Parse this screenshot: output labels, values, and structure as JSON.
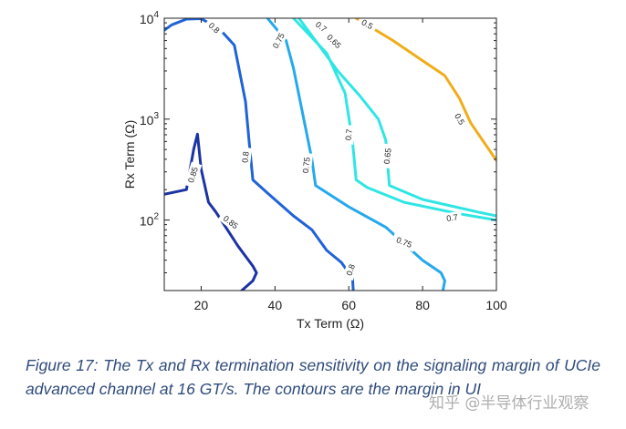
{
  "colors": {
    "c085": "#1c33a6",
    "c080": "#1f63d6",
    "c075": "#25a9ec",
    "c070": "#2fe6e4",
    "c065": "#7fe39a",
    "c050": "#f0ad1a"
  },
  "chart_data": {
    "type": "contour",
    "xlabel": "Tx Term (Ω)",
    "ylabel": "Rx Term (Ω)",
    "xlim": [
      10,
      100
    ],
    "ylim": [
      20,
      10000
    ],
    "yscale": "log",
    "xticks": [
      "20",
      "40",
      "60",
      "80",
      "100"
    ],
    "xtick_values": [
      20,
      40,
      60,
      80,
      100
    ],
    "yticks": [
      {
        "base": "10",
        "exp": "2",
        "value": 100
      },
      {
        "base": "10",
        "exp": "3",
        "value": 1000
      },
      {
        "base": "10",
        "exp": "4",
        "value": 10000
      }
    ],
    "series": [
      {
        "name": "0.85",
        "color_key": "c085",
        "segments": [
          [
            [
              10,
              180
            ],
            [
              16,
              200
            ],
            [
              18,
              510
            ],
            [
              19,
              710
            ],
            [
              20,
              320
            ],
            [
              22,
              150
            ],
            [
              24,
              120
            ],
            [
              30,
              55
            ],
            [
              34,
              35
            ],
            [
              35,
              30
            ],
            [
              34,
              25
            ],
            [
              31,
              20
            ]
          ]
        ],
        "labels": [
          {
            "text": "0.85",
            "x": 17.8,
            "y": 280,
            "angle": -72
          },
          {
            "text": "0.85",
            "x": 28,
            "y": 95,
            "angle": 38
          }
        ]
      },
      {
        "name": "0.8",
        "color_key": "c080",
        "segments": [
          [
            [
              10,
              7600
            ],
            [
              12,
              8600
            ],
            [
              16,
              9800
            ],
            [
              20,
              9900
            ],
            [
              25,
              7800
            ],
            [
              29,
              5400
            ],
            [
              32,
              1500
            ],
            [
              33,
              600
            ],
            [
              34,
              250
            ],
            [
              38,
              185
            ],
            [
              45,
              110
            ],
            [
              50,
              80
            ],
            [
              54,
              50
            ],
            [
              58,
              38
            ],
            [
              60,
              30
            ],
            [
              61,
              27
            ],
            [
              61.2,
              20
            ]
          ]
        ],
        "labels": [
          {
            "text": "0.8",
            "x": 23.5,
            "y": 8000,
            "angle": 42
          },
          {
            "text": "0.8",
            "x": 32,
            "y": 420,
            "angle": -84
          },
          {
            "text": "0.8",
            "x": 60.5,
            "y": 32,
            "angle": -72
          }
        ]
      },
      {
        "name": "0.75",
        "color_key": "c075",
        "segments": [
          [
            [
              38,
              10000
            ],
            [
              43,
              6000
            ],
            [
              45,
              3200
            ],
            [
              50,
              400
            ],
            [
              51,
              220
            ],
            [
              60,
              135
            ],
            [
              70,
              85
            ],
            [
              80,
              40
            ],
            [
              85,
              30
            ],
            [
              86,
              25
            ],
            [
              85.5,
              20
            ]
          ]
        ],
        "labels": [
          {
            "text": "0.75",
            "x": 41,
            "y": 6000,
            "angle": -62
          },
          {
            "text": "0.75",
            "x": 48.5,
            "y": 350,
            "angle": -84
          },
          {
            "text": "0.75",
            "x": 75,
            "y": 60,
            "angle": 22
          }
        ]
      },
      {
        "name": "0.7",
        "color_key": "c070",
        "segments": [
          [
            [
              45,
              10000
            ],
            [
              54,
              4500
            ],
            [
              59,
              1800
            ],
            [
              61,
              600
            ],
            [
              62,
              250
            ],
            [
              65,
              210
            ],
            [
              75,
              150
            ],
            [
              90,
              115
            ],
            [
              100,
              100
            ]
          ],
          [
            [
              46.5,
              10000
            ],
            [
              51,
              6000
            ],
            [
              57,
              3000
            ],
            [
              63,
              1700
            ],
            [
              68,
              1000
            ],
            [
              70,
              620
            ],
            [
              71,
              220
            ],
            [
              80,
              160
            ],
            [
              95,
              120
            ],
            [
              100,
              110
            ]
          ]
        ],
        "labels": [
          {
            "text": "0.7",
            "x": 52.5,
            "y": 8200,
            "angle": 38
          },
          {
            "text": "0.7",
            "x": 60,
            "y": 700,
            "angle": -84
          },
          {
            "text": "0.7",
            "x": 88,
            "y": 105,
            "angle": -8
          },
          {
            "text": "0.65",
            "x": 56,
            "y": 5900,
            "angle": 45
          },
          {
            "text": "0.65",
            "x": 70.5,
            "y": 430,
            "angle": -84
          }
        ]
      },
      {
        "name": "0.5",
        "color_key": "c050",
        "segments": [
          [
            [
              62,
              10000
            ],
            [
              72,
              6000
            ],
            [
              80,
              3800
            ],
            [
              86,
              2700
            ],
            [
              90,
              1600
            ],
            [
              93,
              920
            ],
            [
              100,
              390
            ]
          ]
        ],
        "labels": [
          {
            "text": "0.5",
            "x": 65,
            "y": 8700,
            "angle": 28
          },
          {
            "text": "0.5",
            "x": 90,
            "y": 1000,
            "angle": 60
          }
        ]
      }
    ]
  },
  "caption": "Figure 17: The Tx and Rx termination sensitivity on the signaling margin of UCIe advanced channel at 16 GT/s. The contours are the margin in UI",
  "watermark": "知乎 @半导体行业观察"
}
